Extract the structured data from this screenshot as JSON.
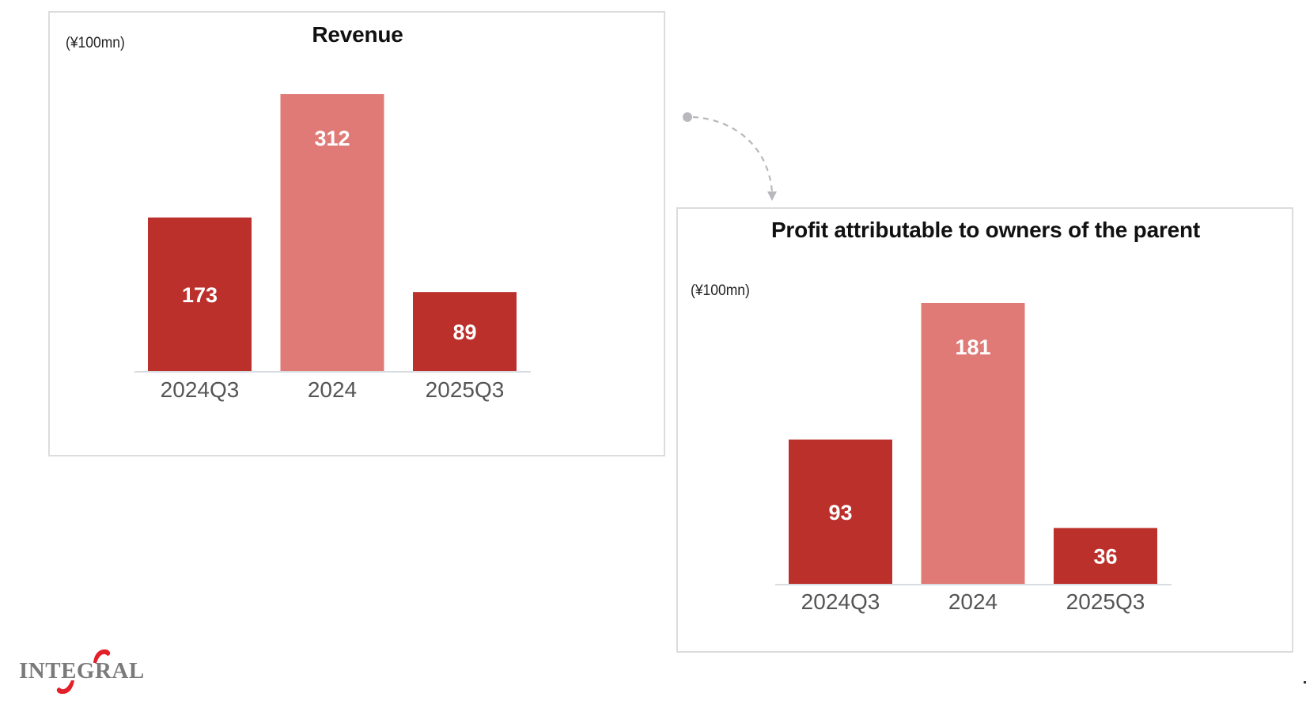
{
  "logo": {
    "text": "INTEGRAL",
    "accent_color": "#E3202A",
    "text_color": "#7a7a7a"
  },
  "colors": {
    "bar_dark": "#BC302C",
    "bar_light": "#E07A77",
    "axis": "#d9dde2",
    "panel_border": "#dcdcdc",
    "connector": "#b8b8bd"
  },
  "connector": {
    "icon": "dashed-curved-arrow"
  },
  "chart_data": [
    {
      "type": "bar",
      "title": "Revenue",
      "unit_label": "(¥100mn)",
      "xlabel": "",
      "ylabel": "",
      "categories": [
        "2024Q3",
        "2024",
        "2025Q3"
      ],
      "values": [
        173,
        312,
        89
      ],
      "data_labels": [
        "173",
        "312",
        "89"
      ],
      "bar_styles": [
        "dark",
        "light",
        "dark"
      ],
      "ylim": [
        0,
        312
      ],
      "grid": false,
      "legend": "none"
    },
    {
      "type": "bar",
      "title": "Profit attributable to owners of the parent",
      "unit_label": "(¥100mn)",
      "xlabel": "",
      "ylabel": "",
      "categories": [
        "2024Q3",
        "2024",
        "2025Q3"
      ],
      "values": [
        93,
        181,
        36
      ],
      "data_labels": [
        "93",
        "181",
        "36"
      ],
      "bar_styles": [
        "dark",
        "light",
        "dark"
      ],
      "ylim": [
        0,
        181
      ],
      "grid": false,
      "legend": "none"
    }
  ]
}
